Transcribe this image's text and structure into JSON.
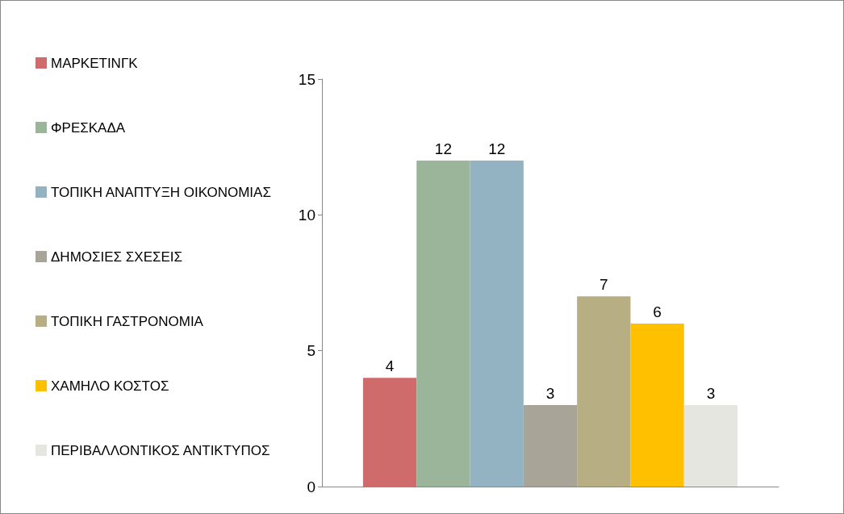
{
  "chart_data": {
    "type": "bar",
    "categories": [
      null
    ],
    "series": [
      {
        "name": "ΜΑΡΚΕΤΙΝΓΚ",
        "color": "#d06b6b",
        "values": [
          4
        ]
      },
      {
        "name": "ΦΡΕΣΚΑΔΑ",
        "color": "#9bb59a",
        "values": [
          12
        ]
      },
      {
        "name": "ΤΟΠΙΚΗ ΑΝΑΠΤΥΞΗ ΟΙΚΟΝΟΜΙΑΣ",
        "color": "#93b3c2",
        "values": [
          12
        ]
      },
      {
        "name": "ΔΗΜΟΣΙΕΣ ΣΧΕΣΕΙΣ",
        "color": "#a8a598",
        "values": [
          3
        ]
      },
      {
        "name": "ΤΟΠΙΚΗ ΓΑΣΤΡΟΝΟΜΙΑ",
        "color": "#b8ae84",
        "values": [
          7
        ]
      },
      {
        "name": "ΧΑΜΗΛΟ ΚΟΣΤΟΣ",
        "color": "#ffc000",
        "values": [
          6
        ]
      },
      {
        "name": "ΠΕΡΙΒΑΛΛΟΝΤΙΚΟΣ ΑΝΤΙΚΤΥΠΟΣ",
        "color": "#e6e6e1",
        "values": [
          3
        ]
      }
    ],
    "ylim": [
      0,
      15
    ],
    "yticks": [
      0,
      5,
      10,
      15
    ],
    "grid": false,
    "legend": "left",
    "data_labels": true
  }
}
